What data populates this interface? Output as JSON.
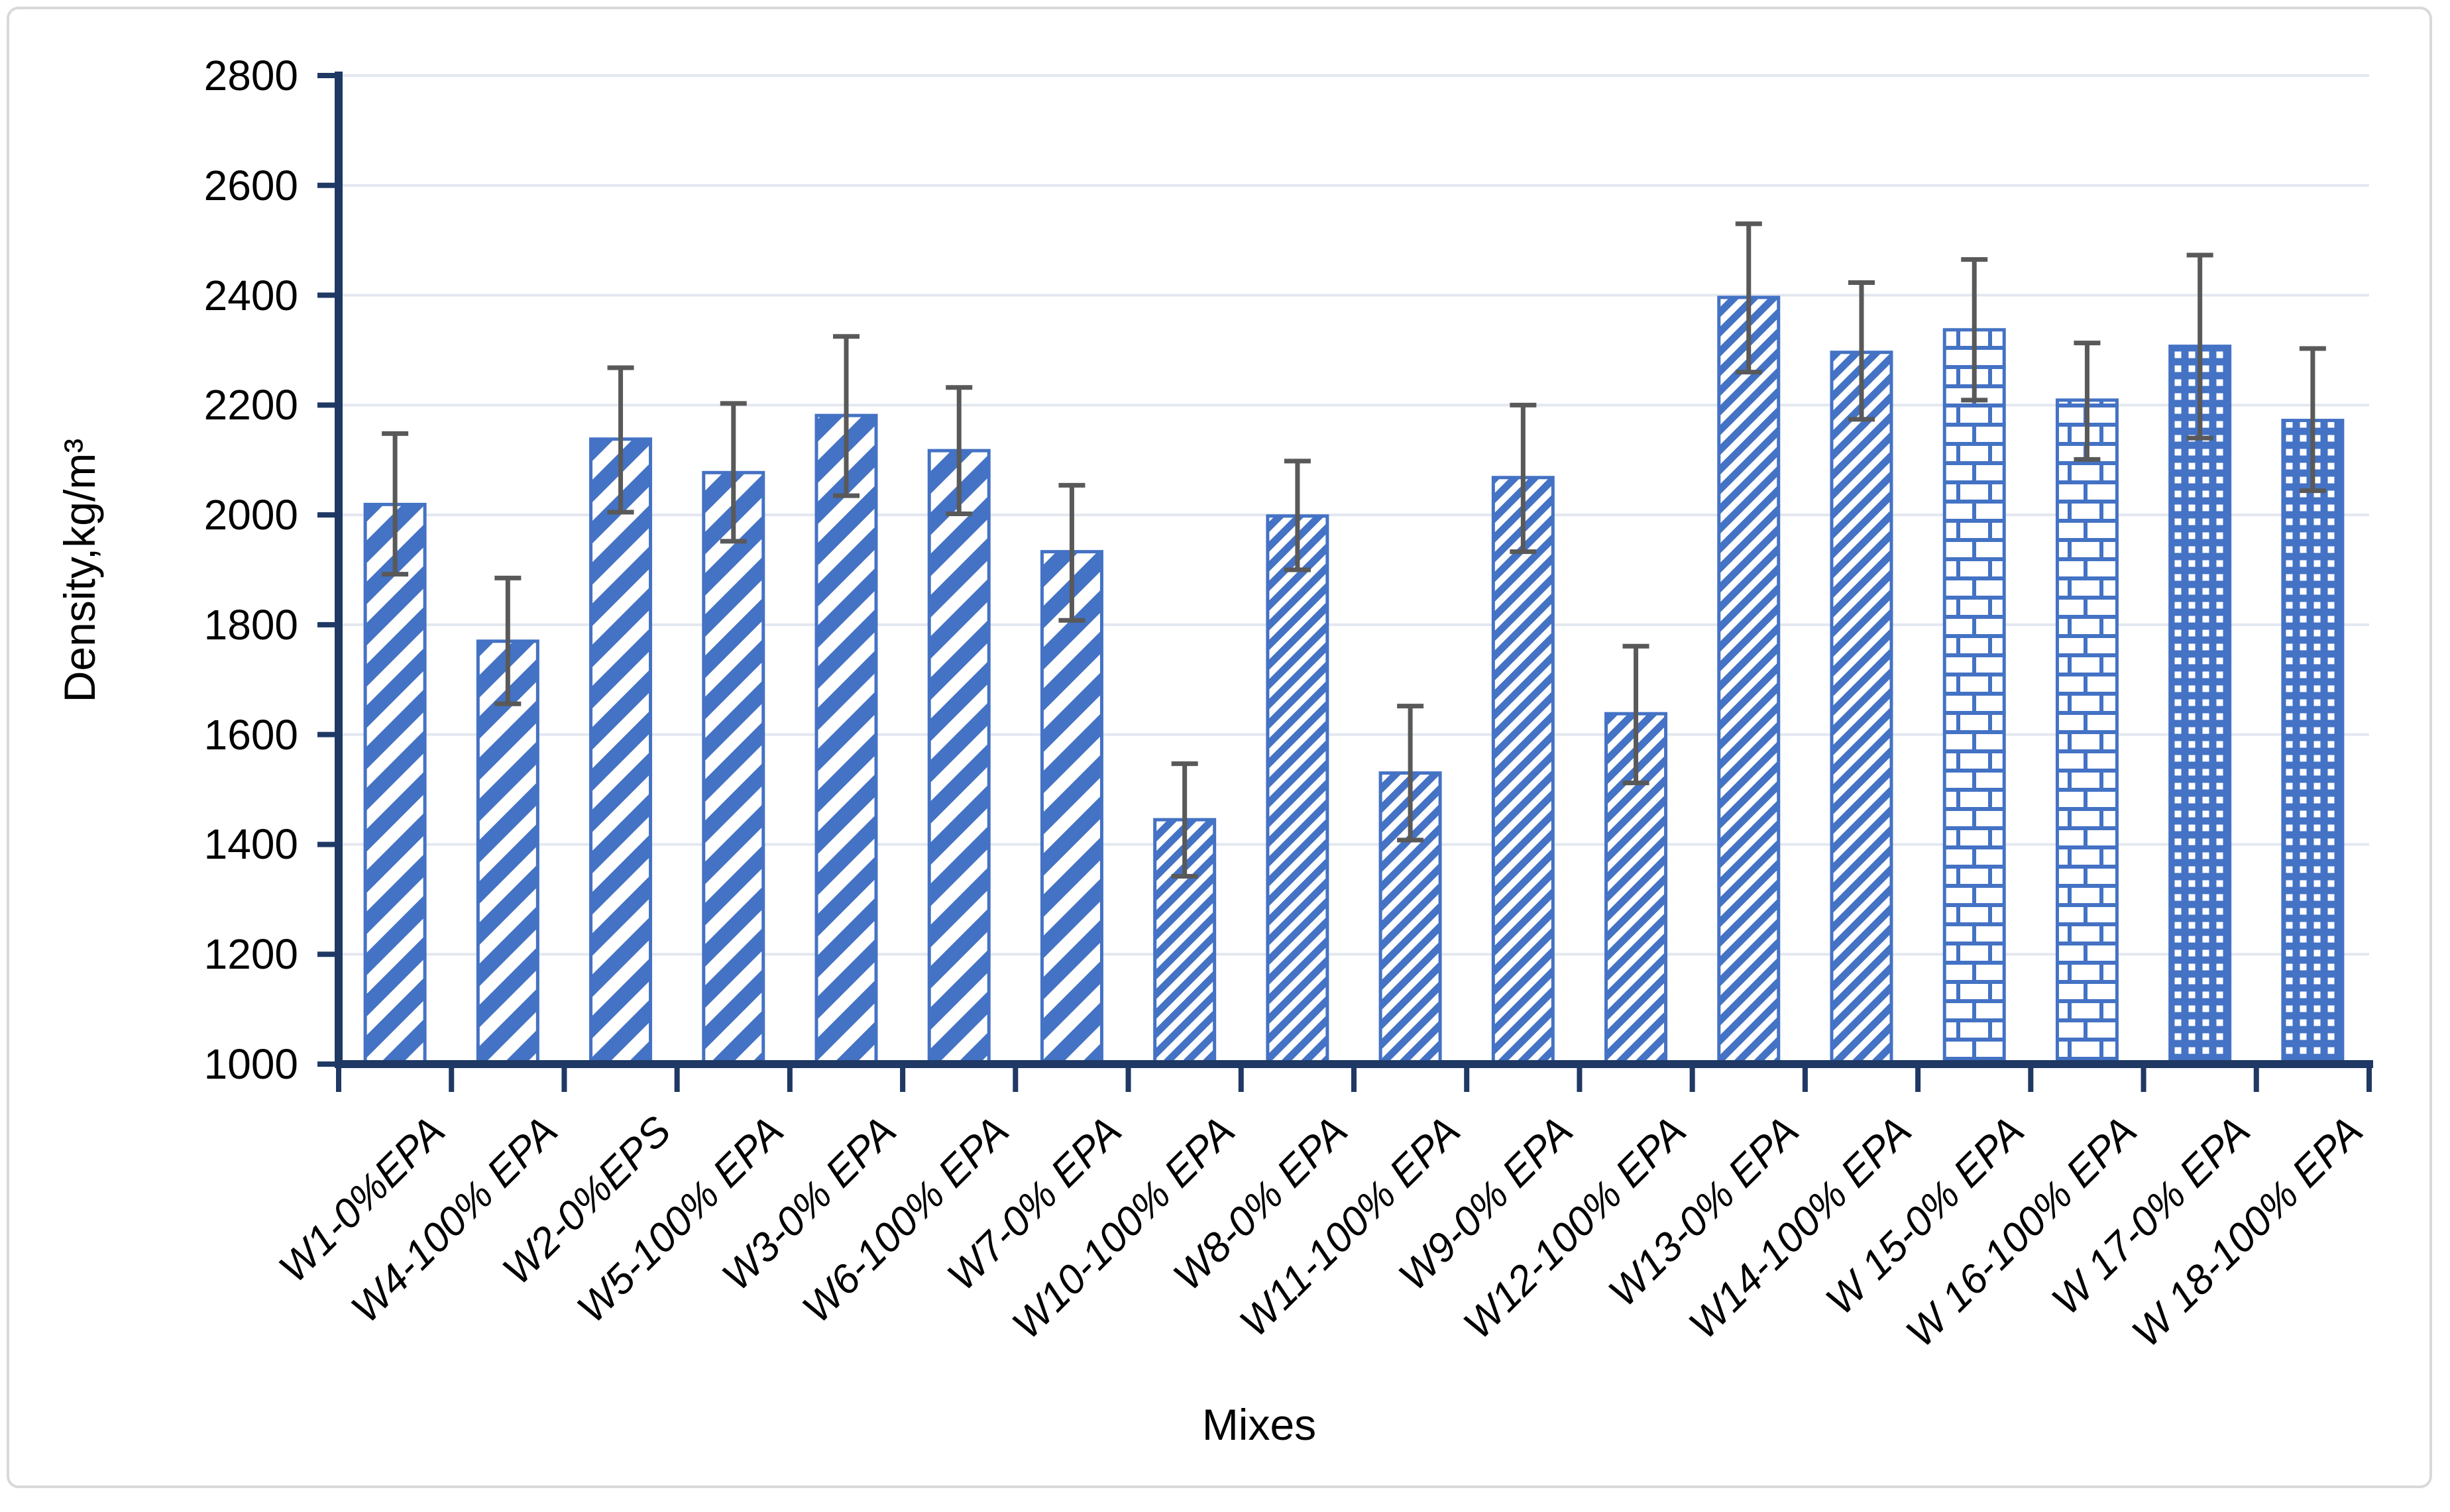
{
  "chart_data": {
    "type": "bar",
    "title": "",
    "xlabel": "Mixes",
    "ylabel": "Density,kg/m³",
    "ylim": [
      1000,
      2800
    ],
    "ytick_interval": 200,
    "yticks": [
      1000,
      1200,
      1400,
      1600,
      1800,
      2000,
      2200,
      2400,
      2600,
      2800
    ],
    "grid": true,
    "legend_position": "none",
    "bar_style": "white bars with blue hatch patterns and dark-gray error bars",
    "categories": [
      "W1-0%EPA",
      "W4-100% EPA",
      "W2-0%EPS",
      "W5-100% EPA",
      "W3-0% EPA",
      "W6-100% EPA",
      "W7-0% EPA",
      "W10-100% EPA",
      "W8-0% EPA",
      "W11-100% EPA",
      "W9-0% EPA",
      "W12-100% EPA",
      "W13-0% EPA",
      "W14-100% EPA",
      "W 15-0% EPA",
      "W 16-100% EPA",
      "W 17-0% EPA",
      "W 18-100% EPA"
    ],
    "values": [
      2019,
      1770,
      2138,
      2077,
      2181,
      2117,
      1933,
      1445,
      1998,
      1530,
      2068,
      1638,
      2396,
      2296,
      2337,
      2209,
      2307,
      2172
    ],
    "error_bar_top": [
      2148,
      1885,
      2268,
      2203,
      2325,
      2232,
      2054,
      1547,
      2098,
      1652,
      2200,
      1761,
      2530,
      2423,
      2465,
      2313,
      2473,
      2303
    ],
    "error_bar_bottom": [
      1892,
      1656,
      2005,
      1952,
      2035,
      2002,
      1808,
      1342,
      1900,
      1408,
      1933,
      1512,
      2260,
      2174,
      2209,
      2101,
      2140,
      2044
    ],
    "patterns": [
      "wide-diagonal",
      "wide-diagonal",
      "wide-diagonal",
      "wide-diagonal",
      "wide-diagonal",
      "wide-diagonal",
      "wide-diagonal",
      "thin-diagonal",
      "thin-diagonal",
      "thin-diagonal",
      "thin-diagonal",
      "thin-diagonal",
      "thin-diagonal",
      "thin-diagonal",
      "brick",
      "brick",
      "grid-dots",
      "grid-dots"
    ],
    "colors": {
      "bar_hatch": "#4472C4",
      "bar_fill": "#FFFFFF",
      "error_bar": "#595959",
      "axis_line": "#1F3864",
      "gridline": "#E3E7EF",
      "text": "#000000",
      "frame_border": "#D9D9D9"
    }
  }
}
